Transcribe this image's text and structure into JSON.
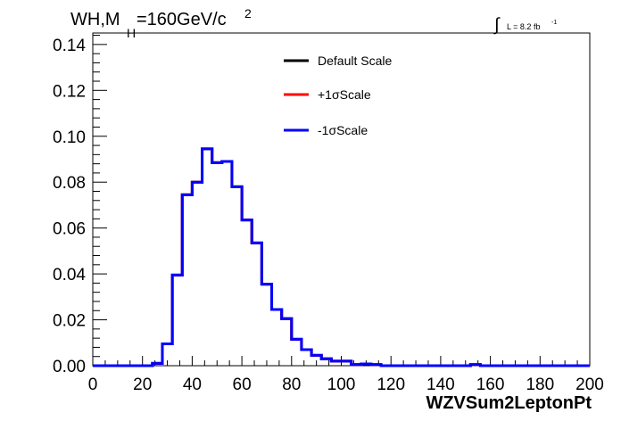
{
  "header": {
    "title_main": "WH,M",
    "title_sub": "H",
    "title_rest": "=160GeV/c",
    "title_sup": "2",
    "lumi_symbol": "∫",
    "lumi_text": "L = 8.2 fb",
    "lumi_sup": "-1"
  },
  "chart_data": {
    "type": "line",
    "drawstyle": "steps",
    "title": "WH,MH=160GeV/c2",
    "xlabel": "WZVSum2LeptonPt",
    "ylabel": "",
    "xlim": [
      0,
      200
    ],
    "ylim": [
      0,
      0.145
    ],
    "bin_edges": [
      0,
      4,
      8,
      12,
      16,
      20,
      24,
      28,
      32,
      36,
      40,
      44,
      48,
      52,
      56,
      60,
      64,
      68,
      72,
      76,
      80,
      84,
      88,
      92,
      96,
      100,
      104,
      108,
      112,
      116,
      120,
      124,
      128,
      132,
      136,
      140,
      144,
      148,
      152,
      156,
      160,
      164,
      168,
      172,
      176,
      180,
      184,
      188,
      192,
      196,
      200
    ],
    "x_ticks": [
      0,
      20,
      40,
      60,
      80,
      100,
      120,
      140,
      160,
      180,
      200
    ],
    "x_tick_labels": [
      "0",
      "20",
      "40",
      "60",
      "80",
      "100",
      "120",
      "140",
      "160",
      "180",
      "200"
    ],
    "y_ticks": [
      0,
      0.02,
      0.04,
      0.06,
      0.08,
      0.1,
      0.12,
      0.14
    ],
    "y_tick_labels": [
      "0.00",
      "0.02",
      "0.04",
      "0.06",
      "0.08",
      "0.10",
      "0.12",
      "0.14"
    ],
    "grid": false,
    "legend_position": "top-center",
    "series": [
      {
        "name": "Default Scale",
        "color": "#000000",
        "values": [
          0,
          0,
          0,
          0,
          0,
          0,
          0.001,
          0.0095,
          0.0395,
          0.0745,
          0.08,
          0.0945,
          0.0885,
          0.089,
          0.078,
          0.0635,
          0.0535,
          0.0355,
          0.0245,
          0.0205,
          0.0115,
          0.007,
          0.0045,
          0.003,
          0.002,
          0.002,
          0.0005,
          0.0008,
          0.0005,
          0,
          0,
          0,
          0,
          0,
          0,
          0,
          0,
          0,
          0.0005,
          0,
          0,
          0,
          0,
          0,
          0,
          0,
          0,
          0,
          0,
          0
        ]
      },
      {
        "name": "+1σScale",
        "color": "#ff0000",
        "values": [
          0,
          0,
          0,
          0,
          0,
          0,
          0.001,
          0.0095,
          0.0395,
          0.0745,
          0.08,
          0.0945,
          0.0885,
          0.089,
          0.078,
          0.0635,
          0.0535,
          0.0355,
          0.0245,
          0.0205,
          0.0115,
          0.007,
          0.0045,
          0.003,
          0.002,
          0.002,
          0.0005,
          0.0008,
          0.0005,
          0,
          0,
          0,
          0,
          0,
          0,
          0,
          0,
          0,
          0.0005,
          0,
          0,
          0,
          0,
          0,
          0,
          0,
          0,
          0,
          0,
          0
        ]
      },
      {
        "name": "-1σScale",
        "color": "#0000ff",
        "values": [
          0,
          0,
          0,
          0,
          0,
          0,
          0.001,
          0.0095,
          0.0395,
          0.0745,
          0.08,
          0.0945,
          0.0885,
          0.089,
          0.078,
          0.0635,
          0.0535,
          0.0355,
          0.0245,
          0.0205,
          0.0115,
          0.007,
          0.0045,
          0.003,
          0.002,
          0.002,
          0.0005,
          0.0008,
          0.0005,
          0,
          0,
          0,
          0,
          0,
          0,
          0,
          0,
          0,
          0.0005,
          0,
          0,
          0,
          0,
          0,
          0,
          0,
          0,
          0,
          0,
          0
        ]
      }
    ]
  }
}
